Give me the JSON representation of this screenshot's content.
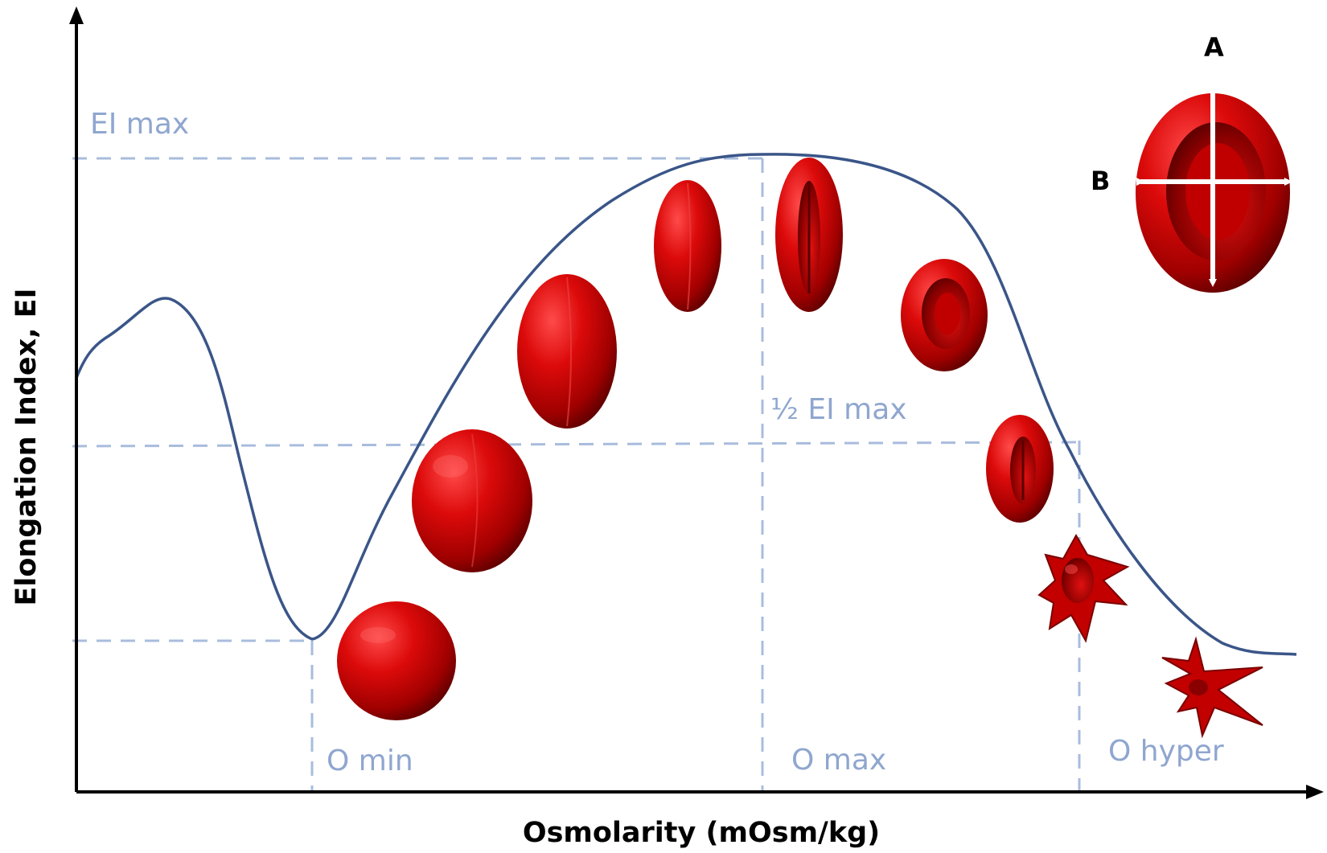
{
  "axes": {
    "x_title": "Osmolarity (mOsm/kg)",
    "y_title": "Elongation Index, EI"
  },
  "reference_labels": {
    "ei_max": "EI max",
    "half_ei_max": "½ EI max",
    "o_min": "O min",
    "o_max": "O max",
    "o_hyper": "O hyper"
  },
  "inset": {
    "axis_a": "A",
    "axis_b": "B"
  },
  "colors": {
    "curve": "#3a5588",
    "reference_lines": "#a9bcdd",
    "reference_text": "#8fa6cf",
    "cell_red": "#c80000",
    "axis": "#000000"
  },
  "cells": [
    {
      "shape": "sphere"
    },
    {
      "shape": "sphere"
    },
    {
      "shape": "ellipsoid"
    },
    {
      "shape": "elongated"
    },
    {
      "shape": "elongated-slit"
    },
    {
      "shape": "discocyte"
    },
    {
      "shape": "stomatocyte"
    },
    {
      "shape": "echinocyte"
    },
    {
      "shape": "spiculated"
    }
  ]
}
